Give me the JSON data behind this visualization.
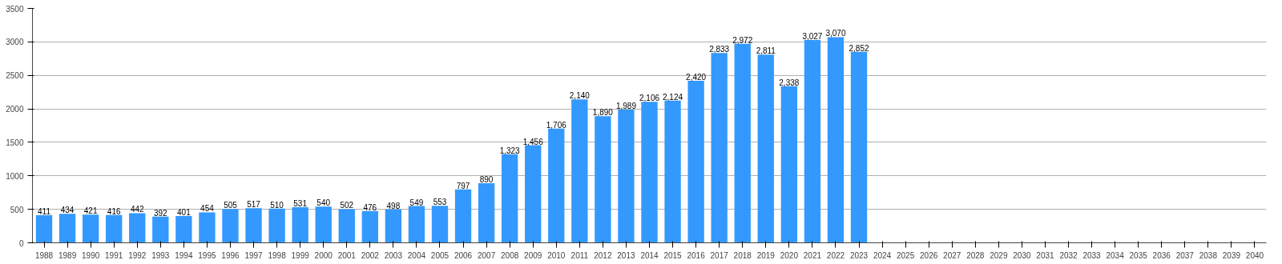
{
  "chart_data": {
    "type": "bar",
    "categories": [
      "1988",
      "1989",
      "1990",
      "1991",
      "1992",
      "1993",
      "1994",
      "1995",
      "1996",
      "1997",
      "1998",
      "1999",
      "2000",
      "2001",
      "2002",
      "2003",
      "2004",
      "2005",
      "2006",
      "2007",
      "2008",
      "2009",
      "2010",
      "2011",
      "2012",
      "2013",
      "2014",
      "2015",
      "2016",
      "2017",
      "2018",
      "2019",
      "2020",
      "2021",
      "2022",
      "2023",
      "2024",
      "2025",
      "2026",
      "2027",
      "2028",
      "2029",
      "2030",
      "2031",
      "2032",
      "2033",
      "2034",
      "2035",
      "2036",
      "2037",
      "2038",
      "2039",
      "2040"
    ],
    "values": [
      411,
      434,
      421,
      416,
      442,
      392,
      401,
      454,
      505,
      517,
      510,
      531,
      540,
      502,
      476,
      498,
      549,
      553,
      797,
      890,
      1323,
      1456,
      1706,
      2140,
      1890,
      1989,
      2106,
      2124,
      2420,
      2833,
      2972,
      2811,
      2338,
      3027,
      3070,
      2852,
      null,
      null,
      null,
      null,
      null,
      null,
      null,
      null,
      null,
      null,
      null,
      null,
      null,
      null,
      null,
      null,
      null
    ],
    "value_labels": [
      "411",
      "434",
      "421",
      "416",
      "442",
      "392",
      "401",
      "454",
      "505",
      "517",
      "510",
      "531",
      "540",
      "502",
      "476",
      "498",
      "549",
      "553",
      "797",
      "890",
      "1,323",
      "1,456",
      "1,706",
      "2,140",
      "1,890",
      "1,989",
      "2,106",
      "2,124",
      "2,420",
      "2,833",
      "2,972",
      "2,811",
      "2,338",
      "3,027",
      "3,070",
      "2,852",
      null,
      null,
      null,
      null,
      null,
      null,
      null,
      null,
      null,
      null,
      null,
      null,
      null,
      null,
      null,
      null,
      null
    ],
    "color": "#3399ff",
    "ylim": [
      0,
      3500
    ],
    "yticks": [
      0,
      500,
      1000,
      1500,
      2000,
      2500,
      3000,
      3500
    ],
    "grid": "y"
  }
}
